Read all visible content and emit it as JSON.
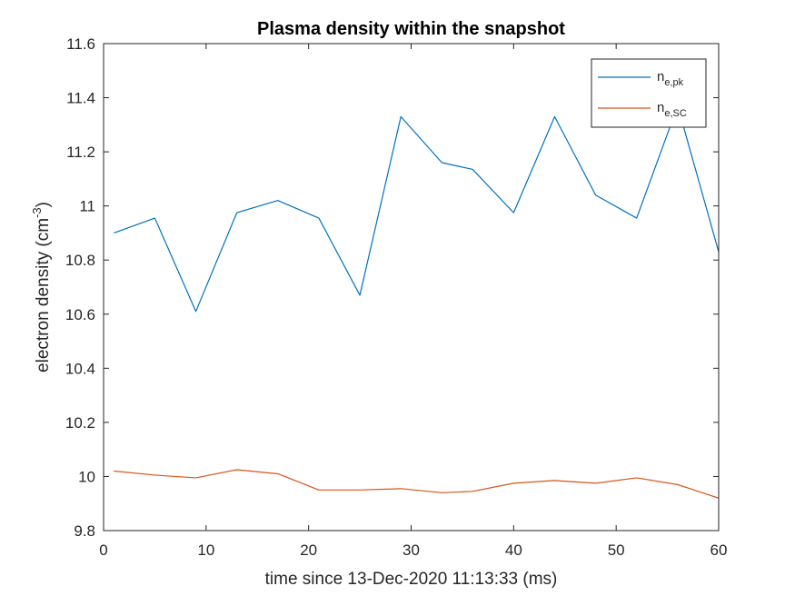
{
  "chart_data": {
    "type": "line",
    "title": "Plasma density within the snapshot",
    "xlabel": "time since 13-Dec-2020 11:13:33 (ms)",
    "ylabel": {
      "text": "electron density (cm",
      "superscript": "-3",
      "suffix": ")"
    },
    "xlim": [
      0,
      60
    ],
    "ylim": [
      9.8,
      11.6
    ],
    "xticks": [
      "0",
      "10",
      "20",
      "30",
      "40",
      "50",
      "60"
    ],
    "yticks": [
      "9.8",
      "10",
      "10.2",
      "10.4",
      "10.6",
      "10.8",
      "11",
      "11.2",
      "11.4",
      "11.6"
    ],
    "grid": false,
    "legend_position": "top-right",
    "series": [
      {
        "name": "n",
        "subscript": "e,pk",
        "color": "#0072BD",
        "x": [
          1,
          5,
          9,
          13,
          17,
          21,
          25,
          29,
          33,
          36,
          40,
          44,
          48,
          52,
          56,
          60
        ],
        "y": [
          10.9,
          10.955,
          10.61,
          10.975,
          11.02,
          10.955,
          10.67,
          11.33,
          11.16,
          11.135,
          10.975,
          11.33,
          11.04,
          10.955,
          11.37,
          10.83
        ]
      },
      {
        "name": "n",
        "subscript": "e,SC",
        "color": "#D95319",
        "x": [
          1,
          5,
          9,
          13,
          17,
          21,
          25,
          29,
          33,
          36,
          40,
          44,
          48,
          52,
          56,
          60
        ],
        "y": [
          10.02,
          10.005,
          9.995,
          10.025,
          10.01,
          9.95,
          9.95,
          9.955,
          9.94,
          9.945,
          9.975,
          9.985,
          9.975,
          9.995,
          9.97,
          9.92
        ]
      }
    ]
  }
}
